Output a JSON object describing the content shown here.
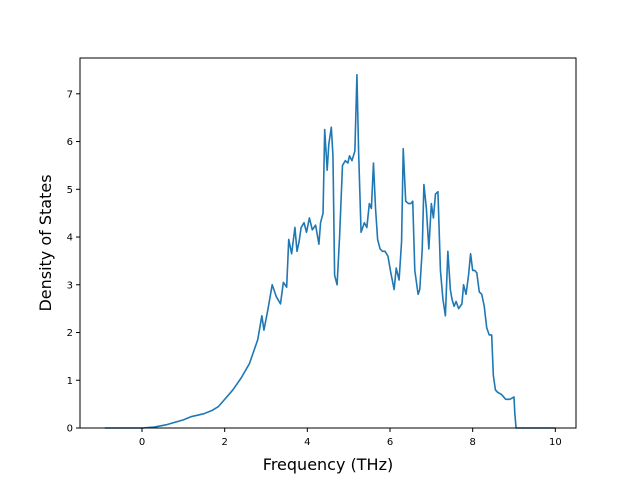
{
  "chart_data": {
    "type": "line",
    "title": "",
    "xlabel": "Frequency (THz)",
    "ylabel": "Density of States",
    "xlim": [
      -1.5,
      10.5
    ],
    "ylim": [
      0,
      7.75
    ],
    "xticks": [
      0,
      2,
      4,
      6,
      8,
      10
    ],
    "yticks": [
      0,
      1,
      2,
      3,
      4,
      5,
      6,
      7
    ],
    "grid": false,
    "line_color": "#1f77b4",
    "series": [
      {
        "x": [
          -0.9,
          0.0,
          0.3,
          0.6,
          1.0,
          1.2,
          1.5,
          1.7,
          1.85,
          2.0,
          2.2,
          2.4,
          2.6,
          2.8,
          2.9,
          2.95,
          3.05,
          3.15,
          3.25,
          3.35,
          3.42,
          3.5,
          3.55,
          3.62,
          3.7,
          3.75,
          3.8,
          3.85,
          3.92,
          3.98,
          4.05,
          4.12,
          4.2,
          4.28,
          4.32,
          4.38,
          4.42,
          4.48,
          4.52,
          4.58,
          4.62,
          4.66,
          4.72,
          4.78,
          4.85,
          4.92,
          4.98,
          5.02,
          5.08,
          5.15,
          5.2,
          5.24,
          5.3,
          5.38,
          5.44,
          5.5,
          5.55,
          5.6,
          5.65,
          5.7,
          5.76,
          5.82,
          5.88,
          5.95,
          6.02,
          6.1,
          6.15,
          6.22,
          6.28,
          6.32,
          6.38,
          6.45,
          6.5,
          6.55,
          6.6,
          6.68,
          6.72,
          6.78,
          6.82,
          6.88,
          6.94,
          7.0,
          7.05,
          7.1,
          7.16,
          7.22,
          7.28,
          7.34,
          7.4,
          7.46,
          7.5,
          7.55,
          7.6,
          7.66,
          7.7,
          7.74,
          7.78,
          7.84,
          7.9,
          7.95,
          8.0,
          8.05,
          8.1,
          8.16,
          8.22,
          8.28,
          8.34,
          8.4,
          8.46,
          8.5,
          8.55,
          8.6,
          8.7,
          8.8,
          8.9,
          9.0,
          9.02,
          9.05,
          9.1,
          10.0
        ],
        "y": [
          0,
          0,
          0.02,
          0.07,
          0.17,
          0.24,
          0.3,
          0.37,
          0.45,
          0.6,
          0.8,
          1.05,
          1.35,
          1.85,
          2.35,
          2.05,
          2.5,
          3.0,
          2.75,
          2.6,
          3.05,
          2.95,
          3.95,
          3.65,
          4.2,
          3.7,
          3.9,
          4.2,
          4.3,
          4.1,
          4.4,
          4.15,
          4.25,
          3.85,
          4.3,
          4.5,
          6.25,
          5.4,
          5.95,
          6.3,
          5.7,
          3.2,
          3.0,
          4.0,
          5.5,
          5.6,
          5.55,
          5.7,
          5.6,
          5.8,
          7.4,
          5.8,
          4.1,
          4.3,
          4.2,
          4.7,
          4.6,
          5.55,
          4.6,
          3.95,
          3.75,
          3.7,
          3.7,
          3.6,
          3.25,
          2.9,
          3.35,
          3.1,
          3.9,
          5.85,
          4.75,
          4.7,
          4.7,
          4.75,
          3.3,
          2.8,
          2.9,
          3.75,
          5.1,
          4.6,
          3.75,
          4.7,
          4.4,
          4.9,
          4.95,
          3.3,
          2.7,
          2.35,
          3.7,
          2.9,
          2.7,
          2.55,
          2.65,
          2.5,
          2.55,
          2.6,
          3.0,
          2.8,
          3.2,
          3.65,
          3.3,
          3.3,
          3.25,
          2.85,
          2.8,
          2.55,
          2.1,
          1.95,
          1.95,
          1.1,
          0.8,
          0.75,
          0.7,
          0.6,
          0.6,
          0.65,
          0.3,
          0,
          0,
          0
        ]
      }
    ]
  }
}
